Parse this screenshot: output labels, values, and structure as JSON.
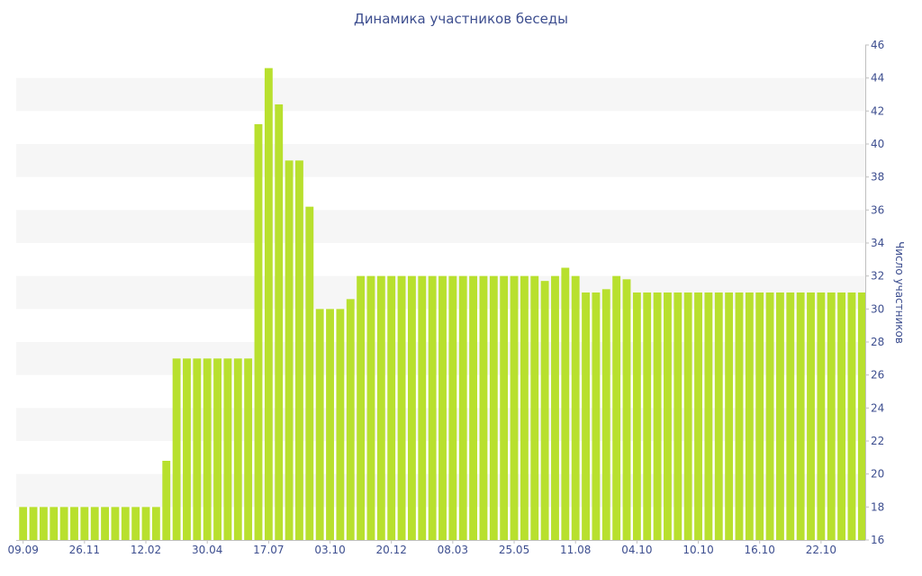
{
  "chart_data": {
    "type": "bar",
    "title": "Динамика участников беседы",
    "ylabel": "Число участников",
    "xlabel": "",
    "ylim": [
      16,
      46
    ],
    "yticks": [
      16,
      18,
      20,
      22,
      24,
      26,
      28,
      30,
      32,
      34,
      36,
      38,
      40,
      42,
      44,
      46
    ],
    "y_axis_side": "right",
    "grid": "horizontal alternating bands",
    "legend": "none",
    "bar_color": "#b8e02e",
    "band_color": "#f6f6f6",
    "text_color": "#3d4e8f",
    "x_tick_labels": [
      {
        "label": "09.09",
        "index": 0
      },
      {
        "label": "26.11",
        "index": 6
      },
      {
        "label": "12.02",
        "index": 12
      },
      {
        "label": "30.04",
        "index": 18
      },
      {
        "label": "17.07",
        "index": 24
      },
      {
        "label": "03.10",
        "index": 30
      },
      {
        "label": "20.12",
        "index": 36
      },
      {
        "label": "08.03",
        "index": 42
      },
      {
        "label": "25.05",
        "index": 48
      },
      {
        "label": "11.08",
        "index": 54
      },
      {
        "label": "04.10",
        "index": 60
      },
      {
        "label": "10.10",
        "index": 66
      },
      {
        "label": "16.10",
        "index": 72
      },
      {
        "label": "22.10",
        "index": 78
      }
    ],
    "values": [
      18,
      18,
      18,
      18,
      18,
      18,
      18,
      18,
      18,
      18,
      18,
      18,
      18,
      18,
      20.8,
      27,
      27,
      27,
      27,
      27,
      27,
      27,
      27,
      41.2,
      44.6,
      42.4,
      39,
      39,
      36.2,
      30,
      30,
      30,
      30.6,
      32,
      32,
      32,
      32,
      32,
      32,
      32,
      32,
      32,
      32,
      32,
      32,
      32,
      32,
      32,
      32,
      32,
      32,
      31.7,
      32,
      32.5,
      32,
      31,
      31,
      31.2,
      32,
      31.8,
      31,
      31,
      31,
      31,
      31,
      31,
      31,
      31,
      31,
      31,
      31,
      31,
      31,
      31,
      31,
      31,
      31,
      31,
      31,
      31,
      31,
      31,
      31
    ]
  }
}
